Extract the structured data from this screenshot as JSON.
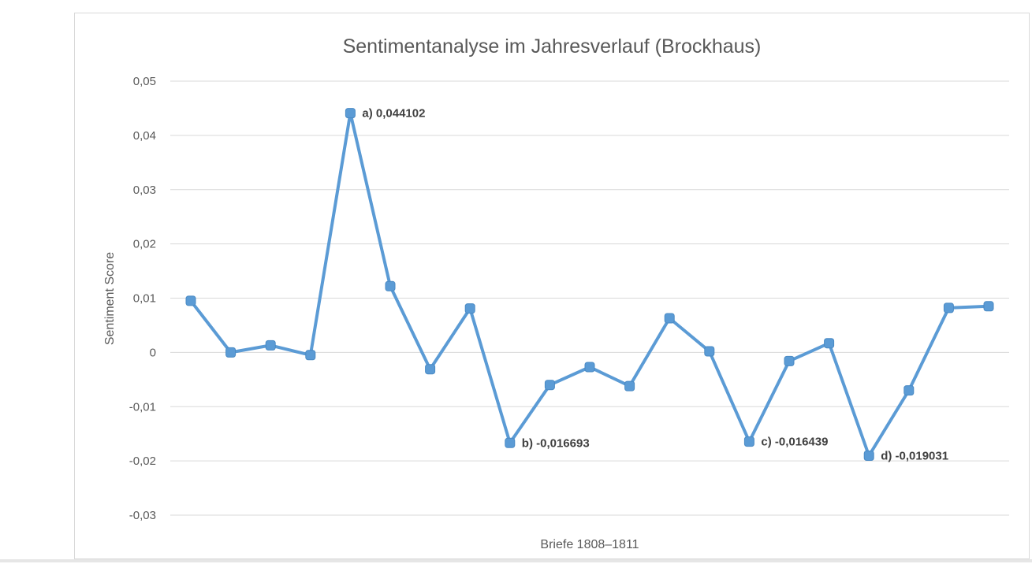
{
  "chart_data": {
    "type": "line",
    "title": "Sentimentanalyse im Jahresverlauf (Brockhaus)",
    "xlabel": "Briefe 1808–1811",
    "ylabel": "Sentiment Score",
    "ylim": [
      -0.03,
      0.05
    ],
    "yticks": [
      0.05,
      0.04,
      0.03,
      0.02,
      0.01,
      0,
      -0.01,
      -0.02,
      -0.03
    ],
    "ytick_labels": [
      "0,05",
      "0,04",
      "0,03",
      "0,02",
      "0,01",
      "0",
      "-0,01",
      "-0,02",
      "-0,03"
    ],
    "grid": true,
    "series": [
      {
        "color": "#5b9bd5",
        "values": [
          0.0095,
          0.0,
          0.0013,
          -0.0005,
          0.044102,
          0.0122,
          -0.0031,
          0.0081,
          -0.016693,
          -0.006,
          -0.0027,
          -0.0062,
          0.0063,
          0.0002,
          -0.016439,
          -0.0016,
          0.0017,
          -0.019031,
          -0.007,
          0.0082,
          0.0085
        ]
      }
    ],
    "annotations": [
      {
        "index": 4,
        "text": "a) 0,044102"
      },
      {
        "index": 8,
        "text": "b) -0,016693"
      },
      {
        "index": 14,
        "text": "c) -0,016439"
      },
      {
        "index": 17,
        "text": "d) -0,019031"
      }
    ]
  }
}
